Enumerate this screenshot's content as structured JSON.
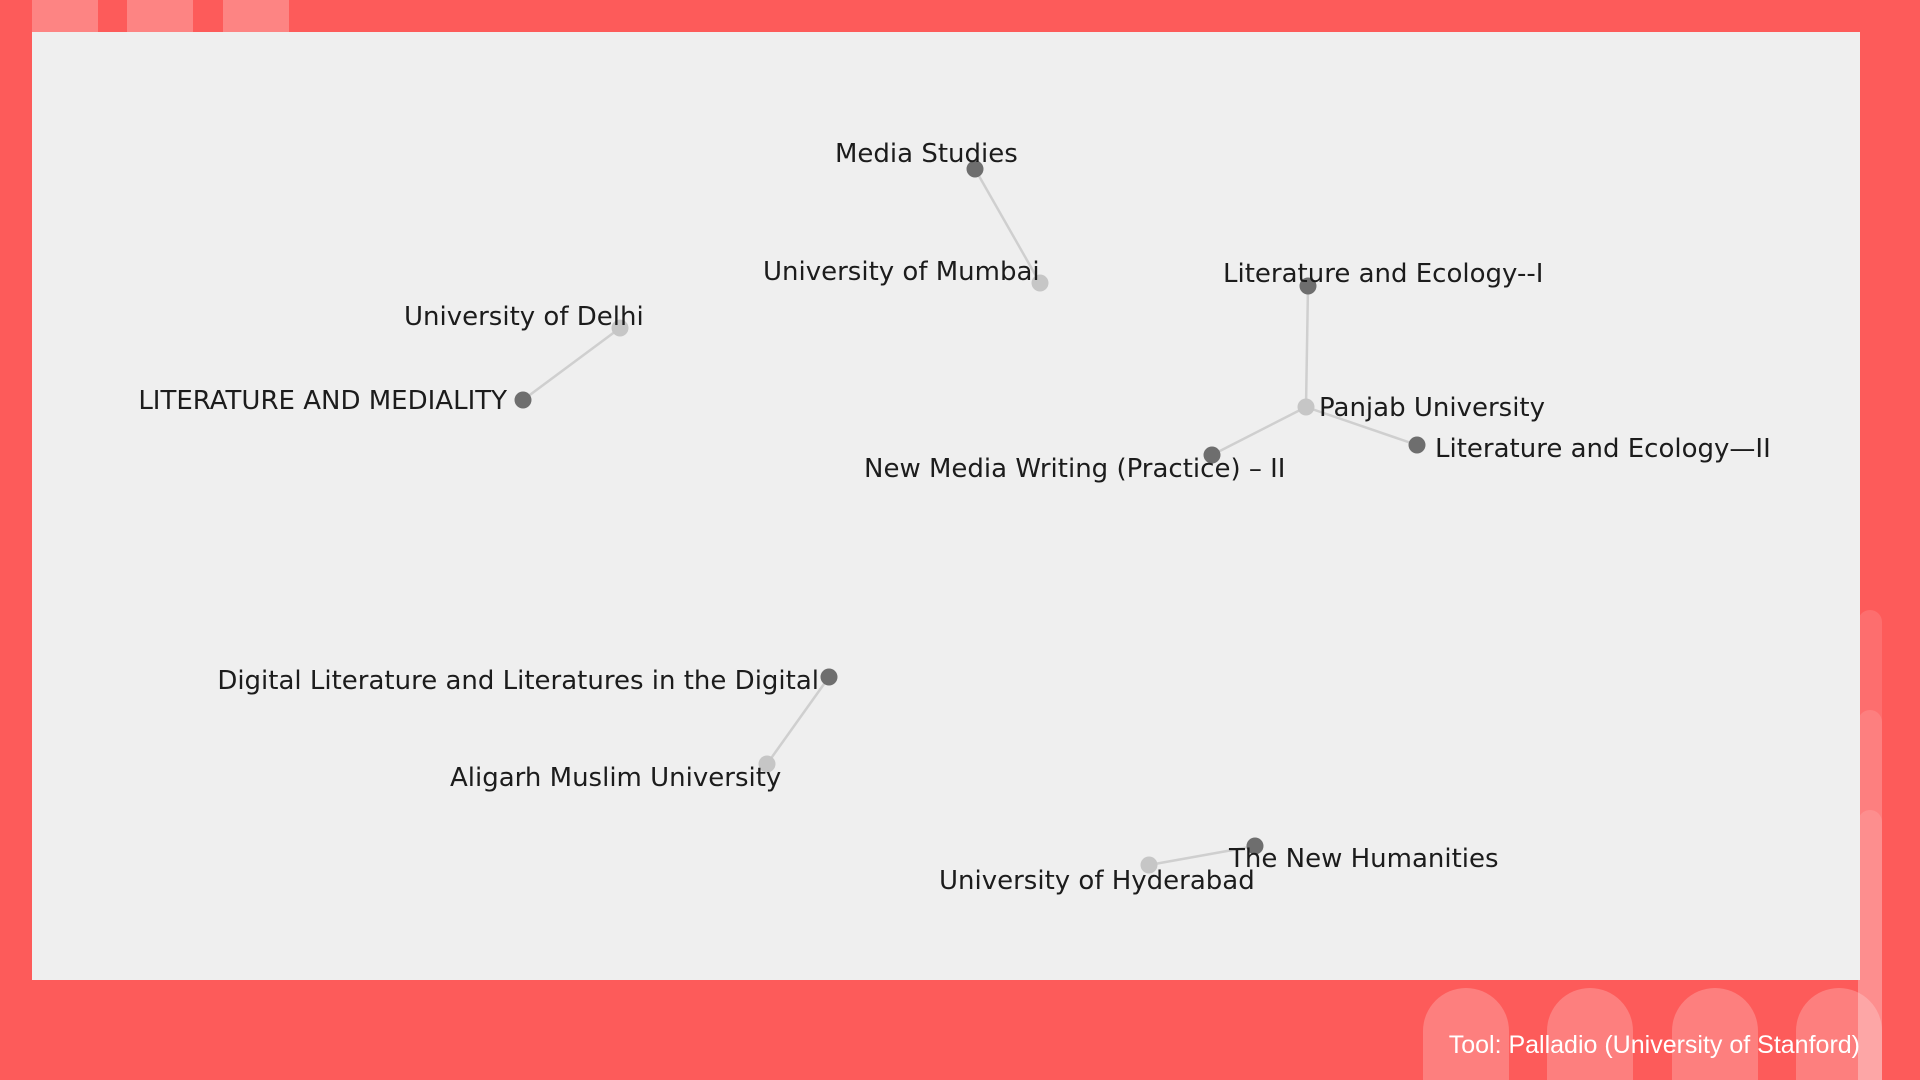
{
  "graph": {
    "node_colors": {
      "course": "#6e6e6e",
      "university": "#c6c6c6"
    },
    "edge_color": "#cfcfcf",
    "nodes": [
      {
        "id": "media-studies",
        "label": "Media Studies",
        "kind": "course"
      },
      {
        "id": "university-of-mumbai",
        "label": "University of Mumbai",
        "kind": "university"
      },
      {
        "id": "literature-and-ecology-1",
        "label": "Literature and Ecology--I",
        "kind": "course"
      },
      {
        "id": "university-of-delhi",
        "label": "University of Delhi",
        "kind": "university"
      },
      {
        "id": "literature-and-mediality",
        "label": "LITERATURE AND MEDIALITY",
        "kind": "course"
      },
      {
        "id": "panjab-university",
        "label": "Panjab University",
        "kind": "university"
      },
      {
        "id": "literature-and-ecology-2",
        "label": "Literature and Ecology—II",
        "kind": "course"
      },
      {
        "id": "new-media-writing",
        "label": "New Media Writing (Practice) – II",
        "kind": "course"
      },
      {
        "id": "digital-literature",
        "label": "Digital Literature and Literatures in the Digital",
        "kind": "course"
      },
      {
        "id": "aligarh-muslim-university",
        "label": "Aligarh Muslim University",
        "kind": "university"
      },
      {
        "id": "the-new-humanities",
        "label": "The New Humanities",
        "kind": "course"
      },
      {
        "id": "university-of-hyderabad",
        "label": "University of Hyderabad",
        "kind": "university"
      }
    ],
    "edges": [
      {
        "from": "media-studies",
        "to": "university-of-mumbai"
      },
      {
        "from": "university-of-delhi",
        "to": "literature-and-mediality"
      },
      {
        "from": "literature-and-ecology-1",
        "to": "panjab-university"
      },
      {
        "from": "panjab-university",
        "to": "literature-and-ecology-2"
      },
      {
        "from": "panjab-university",
        "to": "new-media-writing"
      },
      {
        "from": "digital-literature",
        "to": "aligarh-muslim-university"
      },
      {
        "from": "the-new-humanities",
        "to": "university-of-hyderabad"
      }
    ]
  },
  "credit": "Tool: Palladio (University of Stanford)"
}
